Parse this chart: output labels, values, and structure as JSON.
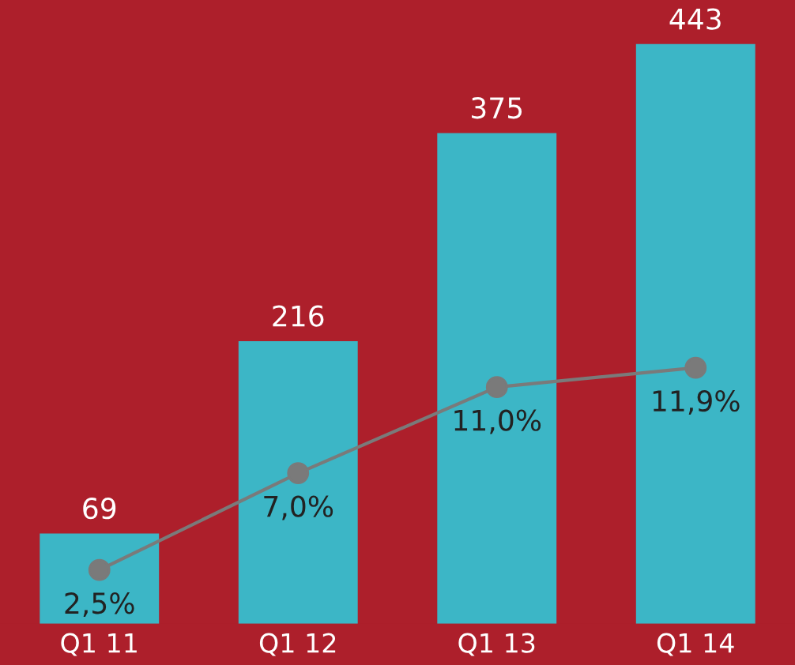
{
  "chart_data": {
    "type": "bar",
    "categories": [
      "Q1 11",
      "Q1 12",
      "Q1 13",
      "Q1 14"
    ],
    "series": [
      {
        "color": "#3cb6c6",
        "values": [
          69,
          216,
          375,
          443
        ],
        "value_labels": [
          "69",
          "216",
          "375",
          "443"
        ]
      },
      {
        "type": "line",
        "axis": "y2",
        "color": "#7a7a7a",
        "values": [
          2.5,
          7.0,
          11.0,
          11.9
        ],
        "value_labels": [
          "2,5%",
          "7,0%",
          "11,0%",
          "11,9%"
        ]
      }
    ],
    "tick_labels": "x",
    "grid": false,
    "legend": false,
    "marker": "circle",
    "line_style": "solid"
  }
}
